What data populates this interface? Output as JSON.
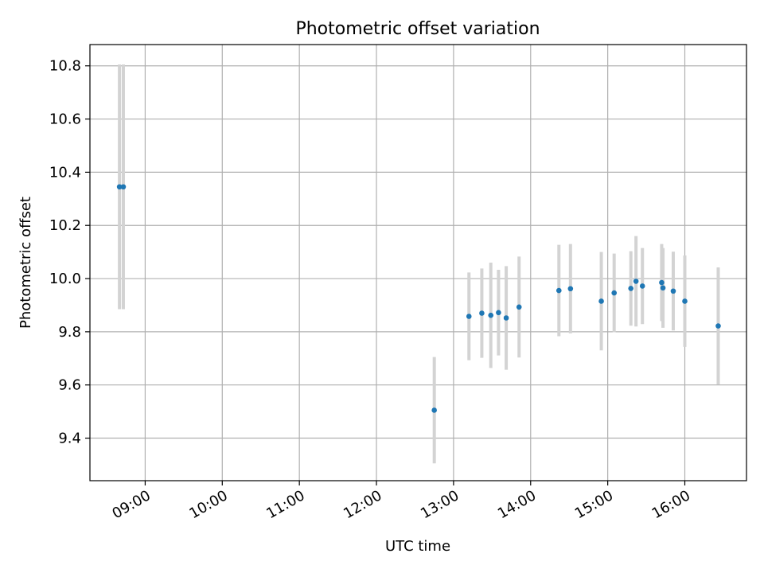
{
  "chart_data": {
    "type": "scatter",
    "title": "Photometric offset variation",
    "xlabel": "UTC time",
    "ylabel": "Photometric offset",
    "x_unit": "UTC time (HH:MM)",
    "xlim": [
      "08:17",
      "16:48"
    ],
    "ylim": [
      9.24,
      10.88
    ],
    "x_ticks": [
      "09:00",
      "10:00",
      "11:00",
      "12:00",
      "13:00",
      "14:00",
      "15:00",
      "16:00"
    ],
    "y_ticks": [
      "9.4",
      "9.6",
      "9.8",
      "10.0",
      "10.2",
      "10.4",
      "10.6",
      "10.8"
    ],
    "grid": true,
    "colors": {
      "point": "#1f77b4",
      "errorbar": "#d3d3d3",
      "grid": "#b0b0b0"
    },
    "series": [
      {
        "points": [
          {
            "x": "08:40",
            "y": 10.345,
            "err": 0.46
          },
          {
            "x": "08:43",
            "y": 10.345,
            "err": 0.46
          },
          {
            "x": "12:45",
            "y": 9.505,
            "err": 0.2
          },
          {
            "x": "13:12",
            "y": 9.858,
            "err": 0.165
          },
          {
            "x": "13:22",
            "y": 9.87,
            "err": 0.168
          },
          {
            "x": "13:29",
            "y": 9.862,
            "err": 0.198
          },
          {
            "x": "13:35",
            "y": 9.872,
            "err": 0.161
          },
          {
            "x": "13:41",
            "y": 9.852,
            "err": 0.195
          },
          {
            "x": "13:51",
            "y": 9.893,
            "err": 0.19
          },
          {
            "x": "14:22",
            "y": 9.955,
            "err": 0.172
          },
          {
            "x": "14:31",
            "y": 9.962,
            "err": 0.168
          },
          {
            "x": "14:55",
            "y": 9.915,
            "err": 0.185
          },
          {
            "x": "15:05",
            "y": 9.946,
            "err": 0.148
          },
          {
            "x": "15:18",
            "y": 9.963,
            "err": 0.14
          },
          {
            "x": "15:22",
            "y": 9.99,
            "err": 0.17
          },
          {
            "x": "15:27",
            "y": 9.972,
            "err": 0.143
          },
          {
            "x": "15:42",
            "y": 9.985,
            "err": 0.145
          },
          {
            "x": "15:43",
            "y": 9.965,
            "err": 0.15
          },
          {
            "x": "15:51",
            "y": 9.953,
            "err": 0.148
          },
          {
            "x": "16:00",
            "y": 9.915,
            "err": 0.172
          },
          {
            "x": "16:26",
            "y": 9.822,
            "err": 0.22
          }
        ]
      }
    ]
  }
}
